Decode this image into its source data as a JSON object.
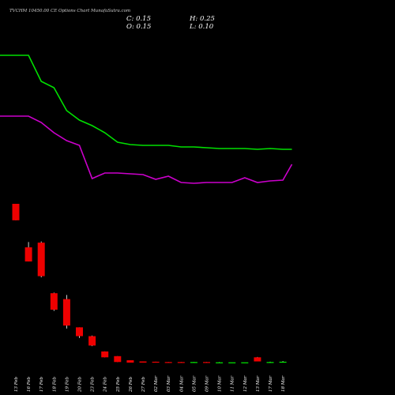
{
  "chart_data": {
    "type": "candlestick",
    "title": "TVCHM 10450.00  CE Options  Chart MunafaSutra.com",
    "ohlc_readout": {
      "close": "C: 0.15",
      "open": "O: 0.15",
      "high": "H: 0.25",
      "low": "L: 0.10"
    },
    "categories": [
      "13 Feb",
      "16 Feb",
      "17 Feb",
      "18 Feb",
      "19 Feb",
      "20 Feb",
      "23 Feb",
      "24 Feb",
      "25 Feb",
      "26 Feb",
      "27 Feb",
      "02 Mar",
      "03 Mar",
      "04 Mar",
      "05 Mar",
      "09 Mar",
      "10 Mar",
      "11 Mar",
      "12 Mar",
      "13 Mar",
      "17 Mar",
      "18 Mar"
    ],
    "candles": [
      {
        "open": 27.0,
        "high": 27.0,
        "low": 24.2,
        "close": 24.2
      },
      {
        "open": 19.6,
        "high": 20.5,
        "low": 17.2,
        "close": 17.2
      },
      {
        "open": 20.4,
        "high": 20.6,
        "low": 14.5,
        "close": 14.7
      },
      {
        "open": 11.8,
        "high": 11.9,
        "low": 8.8,
        "close": 9.0
      },
      {
        "open": 10.8,
        "high": 11.5,
        "low": 5.8,
        "close": 6.3
      },
      {
        "open": 6.0,
        "high": 6.0,
        "low": 4.2,
        "close": 4.5
      },
      {
        "open": 4.5,
        "high": 4.6,
        "low": 2.8,
        "close": 2.9
      },
      {
        "open": 1.9,
        "high": 1.9,
        "low": 0.9,
        "close": 0.9
      },
      {
        "open": 1.1,
        "high": 1.1,
        "low": 0.1,
        "close": 0.1
      },
      {
        "open": 0.4,
        "high": 0.4,
        "low": 0.0,
        "close": 0.0
      },
      {
        "open": 0.2,
        "high": 0.2,
        "low": 0.0,
        "close": 0.0
      },
      {
        "open": 0.15,
        "high": 0.15,
        "low": 0.05,
        "close": 0.05
      },
      {
        "open": 0.1,
        "high": 0.1,
        "low": 0.05,
        "close": 0.05
      },
      {
        "open": 0.1,
        "high": 0.1,
        "low": 0.05,
        "close": 0.05
      },
      {
        "open": 0.05,
        "high": 0.1,
        "low": 0.05,
        "close": 0.1
      },
      {
        "open": 0.1,
        "high": 0.1,
        "low": 0.05,
        "close": 0.05
      },
      {
        "open": 0.05,
        "high": 0.1,
        "low": 0.05,
        "close": 0.05
      },
      {
        "open": 0.05,
        "high": 0.05,
        "low": 0.05,
        "close": 0.05
      },
      {
        "open": 0.05,
        "high": 0.05,
        "low": 0.05,
        "close": 0.05
      },
      {
        "open": 0.9,
        "high": 0.95,
        "low": 0.2,
        "close": 0.2
      },
      {
        "open": 0.1,
        "high": 0.15,
        "low": 0.05,
        "close": 0.1
      },
      {
        "open": 0.15,
        "high": 0.25,
        "low": 0.1,
        "close": 0.15
      }
    ],
    "overlay_series": [
      {
        "color": "#00e000",
        "values": [
          70,
          70,
          103,
          111,
          140,
          152,
          159,
          168,
          180,
          183,
          184,
          184,
          184,
          186,
          186,
          187,
          188,
          188,
          188,
          189,
          188,
          189
        ]
      },
      {
        "color": "#cc00cc",
        "values": [
          147,
          147,
          155,
          168,
          178,
          184,
          226,
          219,
          219,
          220,
          221,
          227,
          223,
          231,
          232,
          231,
          231,
          231,
          225,
          231,
          229,
          228
        ]
      }
    ],
    "overlay_last_point": [
      {
        "x_index": 22.4,
        "value": 189
      },
      {
        "x_index": 22.4,
        "value": 208
      }
    ],
    "overlay_y_axis": "pixel-scale 0 (top) to 500 (bottom)",
    "price_range": [
      0,
      27
    ],
    "colors": {
      "background": "#000000",
      "up_candle": "#00ee00",
      "down_candle": "#ee0000",
      "text": "#ffffff"
    },
    "grid": false,
    "legend": "none"
  }
}
